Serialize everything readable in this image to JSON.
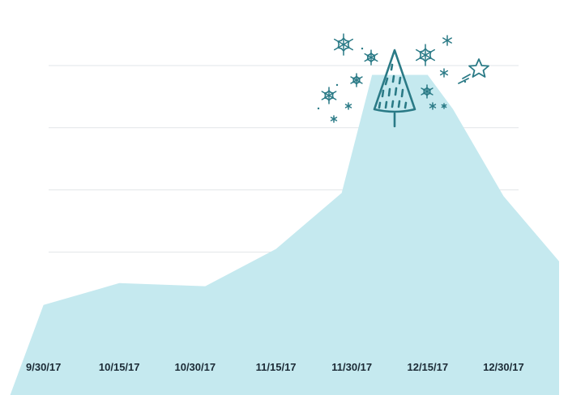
{
  "chart_data": {
    "type": "area",
    "categories": [
      "9/30/17",
      "10/15/17",
      "10/30/17",
      "11/15/17",
      "11/30/17",
      "12/15/17",
      "12/30/17"
    ],
    "series": [
      {
        "x": [
          "9/30/17",
          "10/15/17",
          "11/1/17",
          "11/15/17",
          "11/28/17",
          "12/4/17",
          "12/15/17",
          "12/20/17",
          "12/30/17",
          "1/10/18"
        ],
        "values": [
          2.3,
          3.0,
          2.9,
          4.1,
          5.9,
          9.7,
          9.7,
          8.6,
          5.8,
          3.7
        ]
      }
    ],
    "x_range": [
      "9/23/17",
      "1/10/18"
    ],
    "ylim": [
      0,
      10
    ],
    "grid": true,
    "colors": {
      "area": "#c5e9ef",
      "grid": "#e2e6e8",
      "tick_text": "#1c2b36",
      "decoration": "#2a7a86"
    },
    "decoration": [
      "christmas-tree-icon",
      "snowflake-icon",
      "star-icon"
    ]
  }
}
